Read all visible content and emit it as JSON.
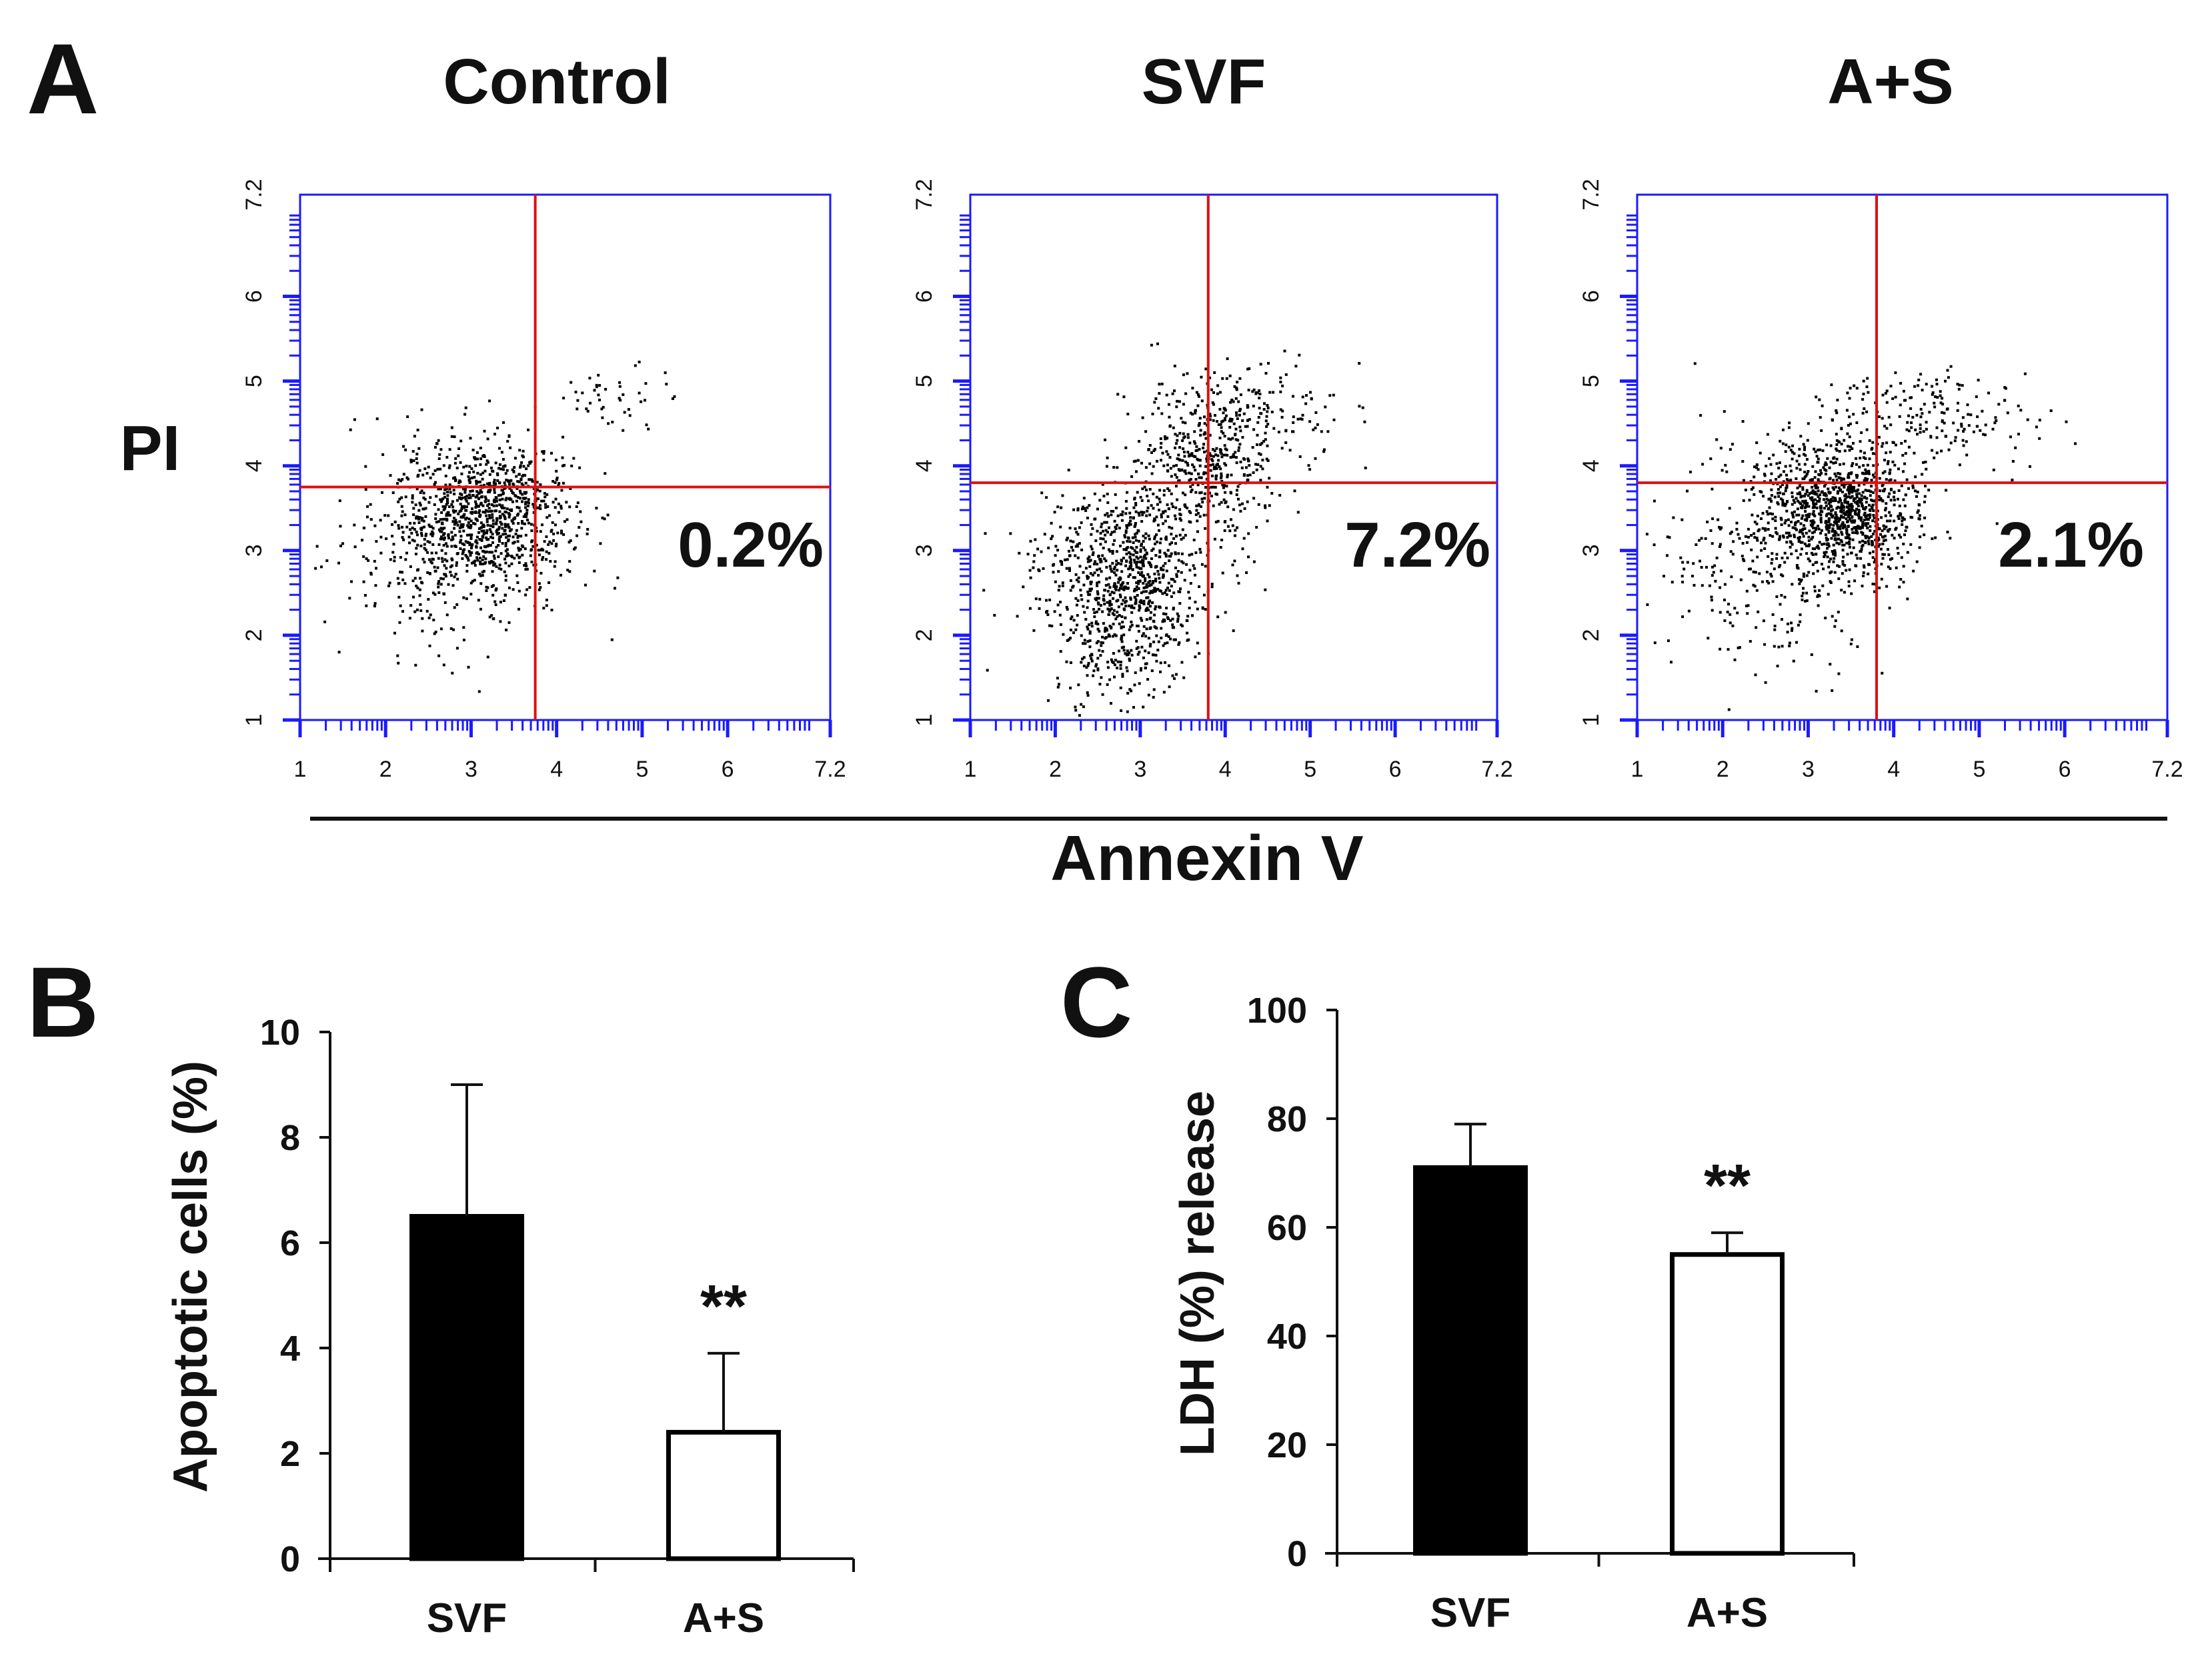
{
  "chart_data": [
    {
      "type": "scatter",
      "panel": "A",
      "xlabel": "Annexin V",
      "ylabel": "PI",
      "xlim": [
        1,
        7.2
      ],
      "ylim": [
        1,
        7.2
      ],
      "x_ticks": [
        "1",
        "2",
        "3",
        "4",
        "5",
        "6",
        "7.2"
      ],
      "y_ticks": [
        "1",
        "2",
        "3",
        "4",
        "5",
        "6",
        "7.2"
      ],
      "plots": [
        {
          "title": "Control",
          "gate_x": 3.75,
          "gate_y": 3.75,
          "percent_label": "0.2%",
          "populations": [
            {
              "cx": 3.2,
              "cy": 3.45,
              "sx": 0.5,
              "sy": 0.42,
              "n": 900
            },
            {
              "cx": 2.6,
              "cy": 3.0,
              "sx": 0.6,
              "sy": 0.6,
              "n": 300
            },
            {
              "cx": 4.7,
              "cy": 4.8,
              "sx": 0.4,
              "sy": 0.2,
              "n": 45
            }
          ]
        },
        {
          "title": "SVF",
          "gate_x": 3.8,
          "gate_y": 3.8,
          "percent_label": "7.2%",
          "populations": [
            {
              "cx": 2.8,
              "cy": 2.75,
              "sx": 0.5,
              "sy": 0.5,
              "n": 850
            },
            {
              "cx": 3.8,
              "cy": 4.1,
              "sx": 0.45,
              "sy": 0.5,
              "n": 500
            },
            {
              "cx": 2.7,
              "cy": 1.8,
              "sx": 0.35,
              "sy": 0.35,
              "n": 150
            },
            {
              "cx": 4.6,
              "cy": 4.7,
              "sx": 0.45,
              "sy": 0.3,
              "n": 80
            }
          ]
        },
        {
          "title": "A+S",
          "gate_x": 3.8,
          "gate_y": 3.8,
          "percent_label": "2.1%",
          "populations": [
            {
              "cx": 3.35,
              "cy": 3.5,
              "sx": 0.45,
              "sy": 0.4,
              "n": 1000
            },
            {
              "cx": 2.6,
              "cy": 3.0,
              "sx": 0.7,
              "sy": 0.7,
              "n": 350
            },
            {
              "cx": 4.4,
              "cy": 4.55,
              "sx": 0.6,
              "sy": 0.3,
              "n": 200
            }
          ]
        }
      ]
    },
    {
      "type": "bar",
      "panel": "B",
      "categories": [
        "SVF",
        "A+S"
      ],
      "values": [
        6.5,
        2.4
      ],
      "error": [
        2.5,
        1.5
      ],
      "bar_colors": [
        "#000000",
        "#ffffff"
      ],
      "significance": [
        "",
        "**"
      ],
      "ylabel": "Apoptotic cells (%)",
      "xlabel": "",
      "ylim": [
        0,
        10
      ],
      "y_ticks": [
        "0",
        "2",
        "4",
        "6",
        "8",
        "10"
      ]
    },
    {
      "type": "bar",
      "panel": "C",
      "categories": [
        "SVF",
        "A+S"
      ],
      "values": [
        71,
        55
      ],
      "error": [
        8,
        4
      ],
      "bar_colors": [
        "#000000",
        "#ffffff"
      ],
      "significance": [
        "",
        "**"
      ],
      "ylabel": "LDH (%) release",
      "xlabel": "",
      "ylim": [
        0,
        100
      ],
      "y_ticks": [
        "0",
        "20",
        "40",
        "60",
        "80",
        "100"
      ]
    }
  ],
  "colors": {
    "axis_blue": "#1a1aff",
    "gate_red": "#dd1111",
    "dots": "#000000"
  }
}
